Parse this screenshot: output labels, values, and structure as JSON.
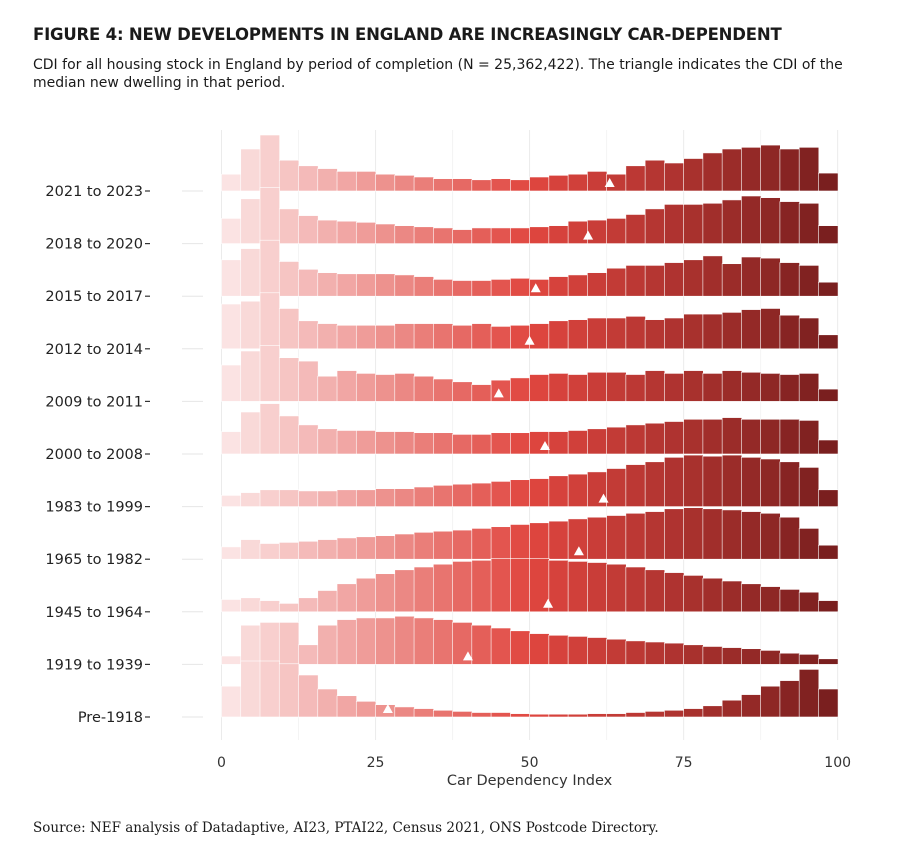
{
  "title": "FIGURE 4: NEW DEVELOPMENTS IN ENGLAND ARE INCREASINGLY CAR-DEPENDENT",
  "subtitle": "CDI for all housing stock in England by period of completion (N = 25,362,422). The triangle indicates the CDI of the median new dwelling in that period.",
  "source": "Source: NEF analysis of Datadaptive, AI23, PTAI22, Census 2021, ONS Postcode Directory.",
  "chart_data": {
    "type": "ridgeline-histogram",
    "xlabel": "Car Dependency Index",
    "xlim": [
      -3,
      102
    ],
    "xticks": [
      0,
      25,
      50,
      75,
      100
    ],
    "bin_width": 3.125,
    "bin_count": 32,
    "color_scale": {
      "low": "#fbe3e3",
      "mid": "#e0463f",
      "high": "#7a1f1f"
    },
    "marker": "triangle = CDI of median new dwelling",
    "series": [
      {
        "name": "2021 to 2023",
        "median": 63,
        "values": [
          0.3,
          0.75,
          1.0,
          0.55,
          0.45,
          0.4,
          0.35,
          0.35,
          0.3,
          0.28,
          0.25,
          0.22,
          0.22,
          0.2,
          0.22,
          0.2,
          0.25,
          0.28,
          0.3,
          0.35,
          0.3,
          0.45,
          0.55,
          0.5,
          0.58,
          0.68,
          0.75,
          0.78,
          0.82,
          0.75,
          0.78,
          0.32
        ]
      },
      {
        "name": "2018 to 2020",
        "median": 59.5,
        "values": [
          0.45,
          0.8,
          1.0,
          0.62,
          0.5,
          0.42,
          0.4,
          0.38,
          0.35,
          0.32,
          0.3,
          0.28,
          0.25,
          0.28,
          0.28,
          0.28,
          0.3,
          0.32,
          0.4,
          0.42,
          0.45,
          0.52,
          0.62,
          0.7,
          0.7,
          0.72,
          0.78,
          0.85,
          0.82,
          0.75,
          0.72,
          0.32
        ]
      },
      {
        "name": "2015 to 2017",
        "median": 51,
        "values": [
          0.65,
          0.85,
          1.0,
          0.62,
          0.48,
          0.42,
          0.4,
          0.4,
          0.4,
          0.38,
          0.35,
          0.3,
          0.28,
          0.28,
          0.3,
          0.32,
          0.3,
          0.35,
          0.38,
          0.42,
          0.5,
          0.55,
          0.55,
          0.6,
          0.65,
          0.72,
          0.58,
          0.7,
          0.68,
          0.6,
          0.55,
          0.25
        ]
      },
      {
        "name": "2012 to 2014",
        "median": 50,
        "values": [
          0.8,
          0.85,
          1.0,
          0.72,
          0.5,
          0.45,
          0.42,
          0.42,
          0.42,
          0.45,
          0.45,
          0.45,
          0.42,
          0.45,
          0.4,
          0.42,
          0.45,
          0.5,
          0.52,
          0.55,
          0.55,
          0.58,
          0.52,
          0.55,
          0.62,
          0.62,
          0.65,
          0.7,
          0.72,
          0.6,
          0.55,
          0.25
        ]
      },
      {
        "name": "2009 to 2011",
        "median": 45,
        "values": [
          0.65,
          0.9,
          1.0,
          0.78,
          0.72,
          0.45,
          0.55,
          0.5,
          0.48,
          0.5,
          0.45,
          0.4,
          0.35,
          0.3,
          0.38,
          0.42,
          0.48,
          0.5,
          0.48,
          0.52,
          0.52,
          0.48,
          0.55,
          0.5,
          0.55,
          0.5,
          0.55,
          0.52,
          0.5,
          0.48,
          0.5,
          0.22
        ]
      },
      {
        "name": "2000 to 2008",
        "median": 52.5,
        "values": [
          0.4,
          0.75,
          0.9,
          0.68,
          0.52,
          0.45,
          0.42,
          0.42,
          0.4,
          0.4,
          0.38,
          0.38,
          0.35,
          0.35,
          0.38,
          0.38,
          0.4,
          0.4,
          0.42,
          0.45,
          0.48,
          0.52,
          0.55,
          0.58,
          0.62,
          0.62,
          0.65,
          0.62,
          0.62,
          0.62,
          0.6,
          0.25
        ]
      },
      {
        "name": "1983 to 1999",
        "median": 62,
        "values": [
          0.2,
          0.25,
          0.3,
          0.3,
          0.28,
          0.28,
          0.3,
          0.3,
          0.32,
          0.32,
          0.35,
          0.38,
          0.4,
          0.42,
          0.45,
          0.48,
          0.5,
          0.55,
          0.58,
          0.62,
          0.68,
          0.75,
          0.8,
          0.88,
          0.92,
          0.9,
          0.92,
          0.88,
          0.85,
          0.8,
          0.7,
          0.3
        ]
      },
      {
        "name": "1965 to 1982",
        "median": 58,
        "values": [
          0.22,
          0.35,
          0.28,
          0.3,
          0.32,
          0.35,
          0.38,
          0.4,
          0.42,
          0.45,
          0.48,
          0.5,
          0.52,
          0.55,
          0.58,
          0.62,
          0.65,
          0.68,
          0.72,
          0.75,
          0.78,
          0.82,
          0.85,
          0.9,
          0.92,
          0.9,
          0.88,
          0.85,
          0.82,
          0.75,
          0.55,
          0.25
        ]
      },
      {
        "name": "1945 to 1964",
        "median": 53,
        "values": [
          0.22,
          0.25,
          0.2,
          0.15,
          0.25,
          0.38,
          0.5,
          0.6,
          0.68,
          0.75,
          0.8,
          0.85,
          0.9,
          0.92,
          0.95,
          0.95,
          0.95,
          0.92,
          0.9,
          0.88,
          0.85,
          0.8,
          0.75,
          0.7,
          0.65,
          0.6,
          0.55,
          0.5,
          0.45,
          0.4,
          0.35,
          0.2
        ]
      },
      {
        "name": "1919 to 1939",
        "median": 40,
        "values": [
          0.15,
          0.7,
          0.75,
          0.75,
          0.35,
          0.7,
          0.8,
          0.83,
          0.83,
          0.86,
          0.83,
          0.8,
          0.75,
          0.7,
          0.65,
          0.6,
          0.55,
          0.52,
          0.5,
          0.48,
          0.45,
          0.42,
          0.4,
          0.38,
          0.35,
          0.32,
          0.3,
          0.28,
          0.25,
          0.2,
          0.18,
          0.1
        ]
      },
      {
        "name": "Pre-1918",
        "median": 27,
        "values": [
          0.55,
          1.0,
          1.0,
          0.95,
          0.75,
          0.5,
          0.38,
          0.28,
          0.22,
          0.18,
          0.15,
          0.12,
          0.1,
          0.08,
          0.08,
          0.06,
          0.05,
          0.05,
          0.05,
          0.06,
          0.06,
          0.08,
          0.1,
          0.12,
          0.15,
          0.2,
          0.3,
          0.4,
          0.55,
          0.65,
          0.85,
          0.5
        ]
      }
    ]
  }
}
